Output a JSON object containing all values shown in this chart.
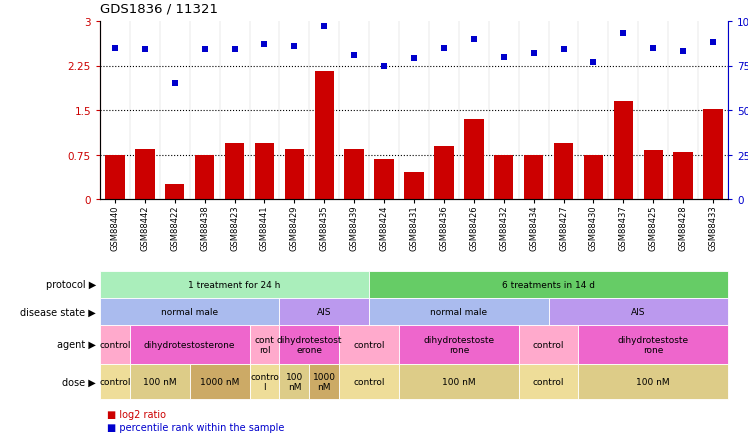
{
  "title": "GDS1836 / 11321",
  "samples": [
    "GSM88440",
    "GSM88442",
    "GSM88422",
    "GSM88438",
    "GSM88423",
    "GSM88441",
    "GSM88429",
    "GSM88435",
    "GSM88439",
    "GSM88424",
    "GSM88431",
    "GSM88436",
    "GSM88426",
    "GSM88432",
    "GSM88434",
    "GSM88427",
    "GSM88430",
    "GSM88437",
    "GSM88425",
    "GSM88428",
    "GSM88433"
  ],
  "log2_ratio": [
    0.75,
    0.85,
    0.25,
    0.75,
    0.95,
    0.95,
    0.85,
    2.15,
    0.85,
    0.68,
    0.45,
    0.9,
    1.35,
    0.75,
    0.75,
    0.95,
    0.75,
    1.65,
    0.82,
    0.8,
    1.52
  ],
  "percentile": [
    85,
    84,
    65,
    84,
    84,
    87,
    86,
    97,
    81,
    75,
    79,
    85,
    90,
    80,
    82,
    84,
    77,
    93,
    85,
    83,
    88
  ],
  "bar_color": "#cc0000",
  "dot_color": "#0000cc",
  "hlines": [
    0.75,
    1.5,
    2.25
  ],
  "bg_color": "#ffffff",
  "axis_label_color": "#cc0000",
  "right_axis_label_color": "#0000cc",
  "protocol_row": {
    "label": "protocol",
    "segments": [
      {
        "text": "1 treatment for 24 h",
        "start": 0,
        "end": 9,
        "color": "#aaeebb"
      },
      {
        "text": "6 treatments in 14 d",
        "start": 9,
        "end": 21,
        "color": "#66cc66"
      }
    ]
  },
  "disease_state_row": {
    "label": "disease state",
    "segments": [
      {
        "text": "normal male",
        "start": 0,
        "end": 6,
        "color": "#aabbee"
      },
      {
        "text": "AIS",
        "start": 6,
        "end": 9,
        "color": "#bb99ee"
      },
      {
        "text": "normal male",
        "start": 9,
        "end": 15,
        "color": "#aabbee"
      },
      {
        "text": "AIS",
        "start": 15,
        "end": 21,
        "color": "#bb99ee"
      }
    ]
  },
  "agent_row": {
    "label": "agent",
    "segments": [
      {
        "text": "control",
        "start": 0,
        "end": 1,
        "color": "#ffaacc"
      },
      {
        "text": "dihydrotestosterone",
        "start": 1,
        "end": 5,
        "color": "#ee66cc"
      },
      {
        "text": "cont\nrol",
        "start": 5,
        "end": 6,
        "color": "#ffaacc"
      },
      {
        "text": "dihydrotestost\nerone",
        "start": 6,
        "end": 8,
        "color": "#ee66cc"
      },
      {
        "text": "control",
        "start": 8,
        "end": 10,
        "color": "#ffaacc"
      },
      {
        "text": "dihydrotestoste\nrone",
        "start": 10,
        "end": 14,
        "color": "#ee66cc"
      },
      {
        "text": "control",
        "start": 14,
        "end": 16,
        "color": "#ffaacc"
      },
      {
        "text": "dihydrotestoste\nrone",
        "start": 16,
        "end": 21,
        "color": "#ee66cc"
      }
    ]
  },
  "dose_row": {
    "label": "dose",
    "segments": [
      {
        "text": "control",
        "start": 0,
        "end": 1,
        "color": "#eedd99"
      },
      {
        "text": "100 nM",
        "start": 1,
        "end": 3,
        "color": "#ddcc88"
      },
      {
        "text": "1000 nM",
        "start": 3,
        "end": 5,
        "color": "#ccaa66"
      },
      {
        "text": "contro\nl",
        "start": 5,
        "end": 6,
        "color": "#eedd99"
      },
      {
        "text": "100\nnM",
        "start": 6,
        "end": 7,
        "color": "#ddcc88"
      },
      {
        "text": "1000\nnM",
        "start": 7,
        "end": 8,
        "color": "#ccaa66"
      },
      {
        "text": "control",
        "start": 8,
        "end": 10,
        "color": "#eedd99"
      },
      {
        "text": "100 nM",
        "start": 10,
        "end": 14,
        "color": "#ddcc88"
      },
      {
        "text": "control",
        "start": 14,
        "end": 16,
        "color": "#eedd99"
      },
      {
        "text": "100 nM",
        "start": 16,
        "end": 21,
        "color": "#ddcc88"
      }
    ]
  },
  "legend": [
    {
      "color": "#cc0000",
      "label": "log2 ratio"
    },
    {
      "color": "#0000cc",
      "label": "percentile rank within the sample"
    }
  ]
}
